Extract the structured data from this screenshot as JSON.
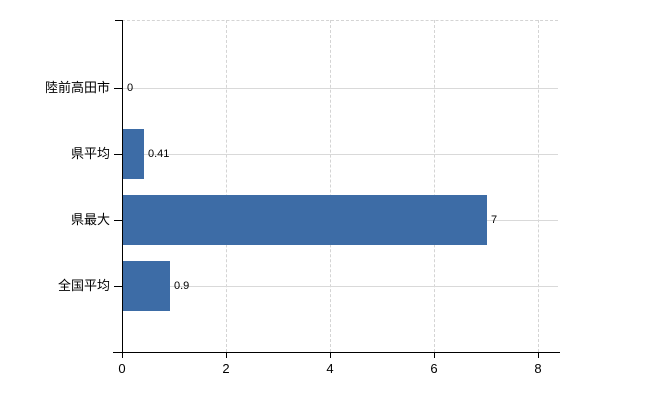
{
  "chart_data": {
    "type": "bar",
    "orientation": "horizontal",
    "title": "",
    "xlabel": "",
    "ylabel": "",
    "categories": [
      "陸前高田市",
      "県平均",
      "県最大",
      "全国平均"
    ],
    "values": [
      0,
      0.41,
      7,
      0.9
    ],
    "value_labels": [
      "0",
      "0.41",
      "7",
      "0.9"
    ],
    "xticks": [
      "0",
      "2",
      "4",
      "6",
      "8"
    ],
    "xtick_values": [
      0,
      2,
      4,
      6,
      8
    ],
    "xlim": [
      0,
      8.4
    ],
    "grid": true,
    "legend_position": "none",
    "bar_color": "#3d6ca6",
    "axis_color": "#000000",
    "hgrid_color": "#d9d9d9",
    "vgrid_color": "#d4d4d4",
    "text_color": "#000000"
  }
}
